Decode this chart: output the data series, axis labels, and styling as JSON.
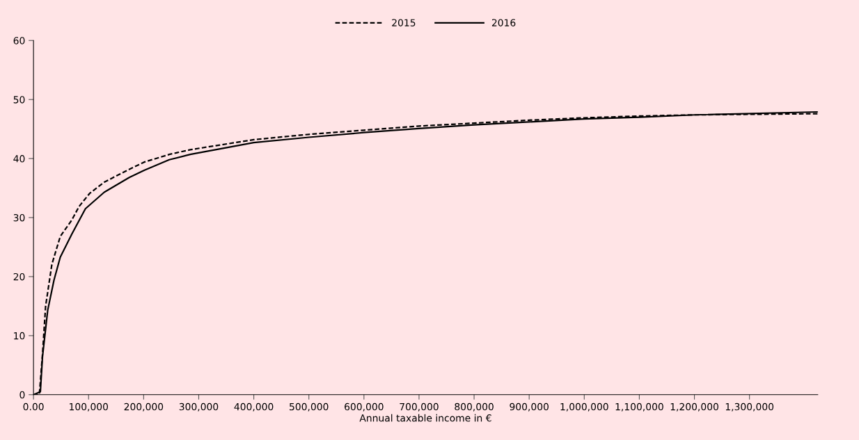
{
  "chart_data": {
    "type": "line",
    "xlabel": "Annual taxable income in €",
    "xlim": [
      0,
      1424000
    ],
    "ylim": [
      0,
      60
    ],
    "xticks": [
      {
        "value": 0,
        "label": "0.00"
      },
      {
        "value": 100000,
        "label": "100,000"
      },
      {
        "value": 200000,
        "label": "200,000"
      },
      {
        "value": 300000,
        "label": "300,000"
      },
      {
        "value": 400000,
        "label": "400,000"
      },
      {
        "value": 500000,
        "label": "500,000"
      },
      {
        "value": 600000,
        "label": "600,000"
      },
      {
        "value": 700000,
        "label": "700,000"
      },
      {
        "value": 800000,
        "label": "800,000"
      },
      {
        "value": 900000,
        "label": "900,000"
      },
      {
        "value": 1000000,
        "label": "1,000,000"
      },
      {
        "value": 1100000,
        "label": "1,100,000"
      },
      {
        "value": 1200000,
        "label": "1,200,000"
      },
      {
        "value": 1300000,
        "label": "1,300,000"
      }
    ],
    "yticks": [
      0,
      10,
      20,
      30,
      40,
      50,
      60
    ],
    "grid": false,
    "legend": "top",
    "marker": "none",
    "series": [
      {
        "name": "2015",
        "color": "#000000",
        "line_style": "dashed",
        "x": [
          0,
          10600,
          16300,
          22000,
          33400,
          48600,
          69600,
          82900,
          102000,
          128500,
          170000,
          201000,
          246600,
          284600,
          400000,
          500000,
          600000,
          700000,
          800000,
          900000,
          1000000,
          1100000,
          1200000,
          1424000
        ],
        "values": [
          0,
          0,
          6.8,
          15,
          22.1,
          26.8,
          29.6,
          31.9,
          34.1,
          36,
          38,
          39.4,
          40.7,
          41.5,
          43.2,
          44.1,
          44.8,
          45.5,
          46,
          46.5,
          46.9,
          47.2,
          47.4,
          47.6
        ]
      },
      {
        "name": "2016",
        "color": "#000000",
        "line_style": "solid",
        "x": [
          0,
          12500,
          16300,
          25800,
          37200,
          48600,
          69600,
          94300,
          128500,
          174000,
          201000,
          246600,
          284600,
          400000,
          500000,
          600000,
          700000,
          800000,
          900000,
          1000000,
          1100000,
          1200000,
          1424000
        ],
        "values": [
          0,
          0.5,
          6.4,
          14.3,
          19.4,
          23.3,
          27.2,
          31.5,
          34.3,
          36.8,
          38,
          39.8,
          40.7,
          42.7,
          43.6,
          44.4,
          45.1,
          45.7,
          46.2,
          46.7,
          47,
          47.4,
          47.9
        ]
      }
    ]
  }
}
